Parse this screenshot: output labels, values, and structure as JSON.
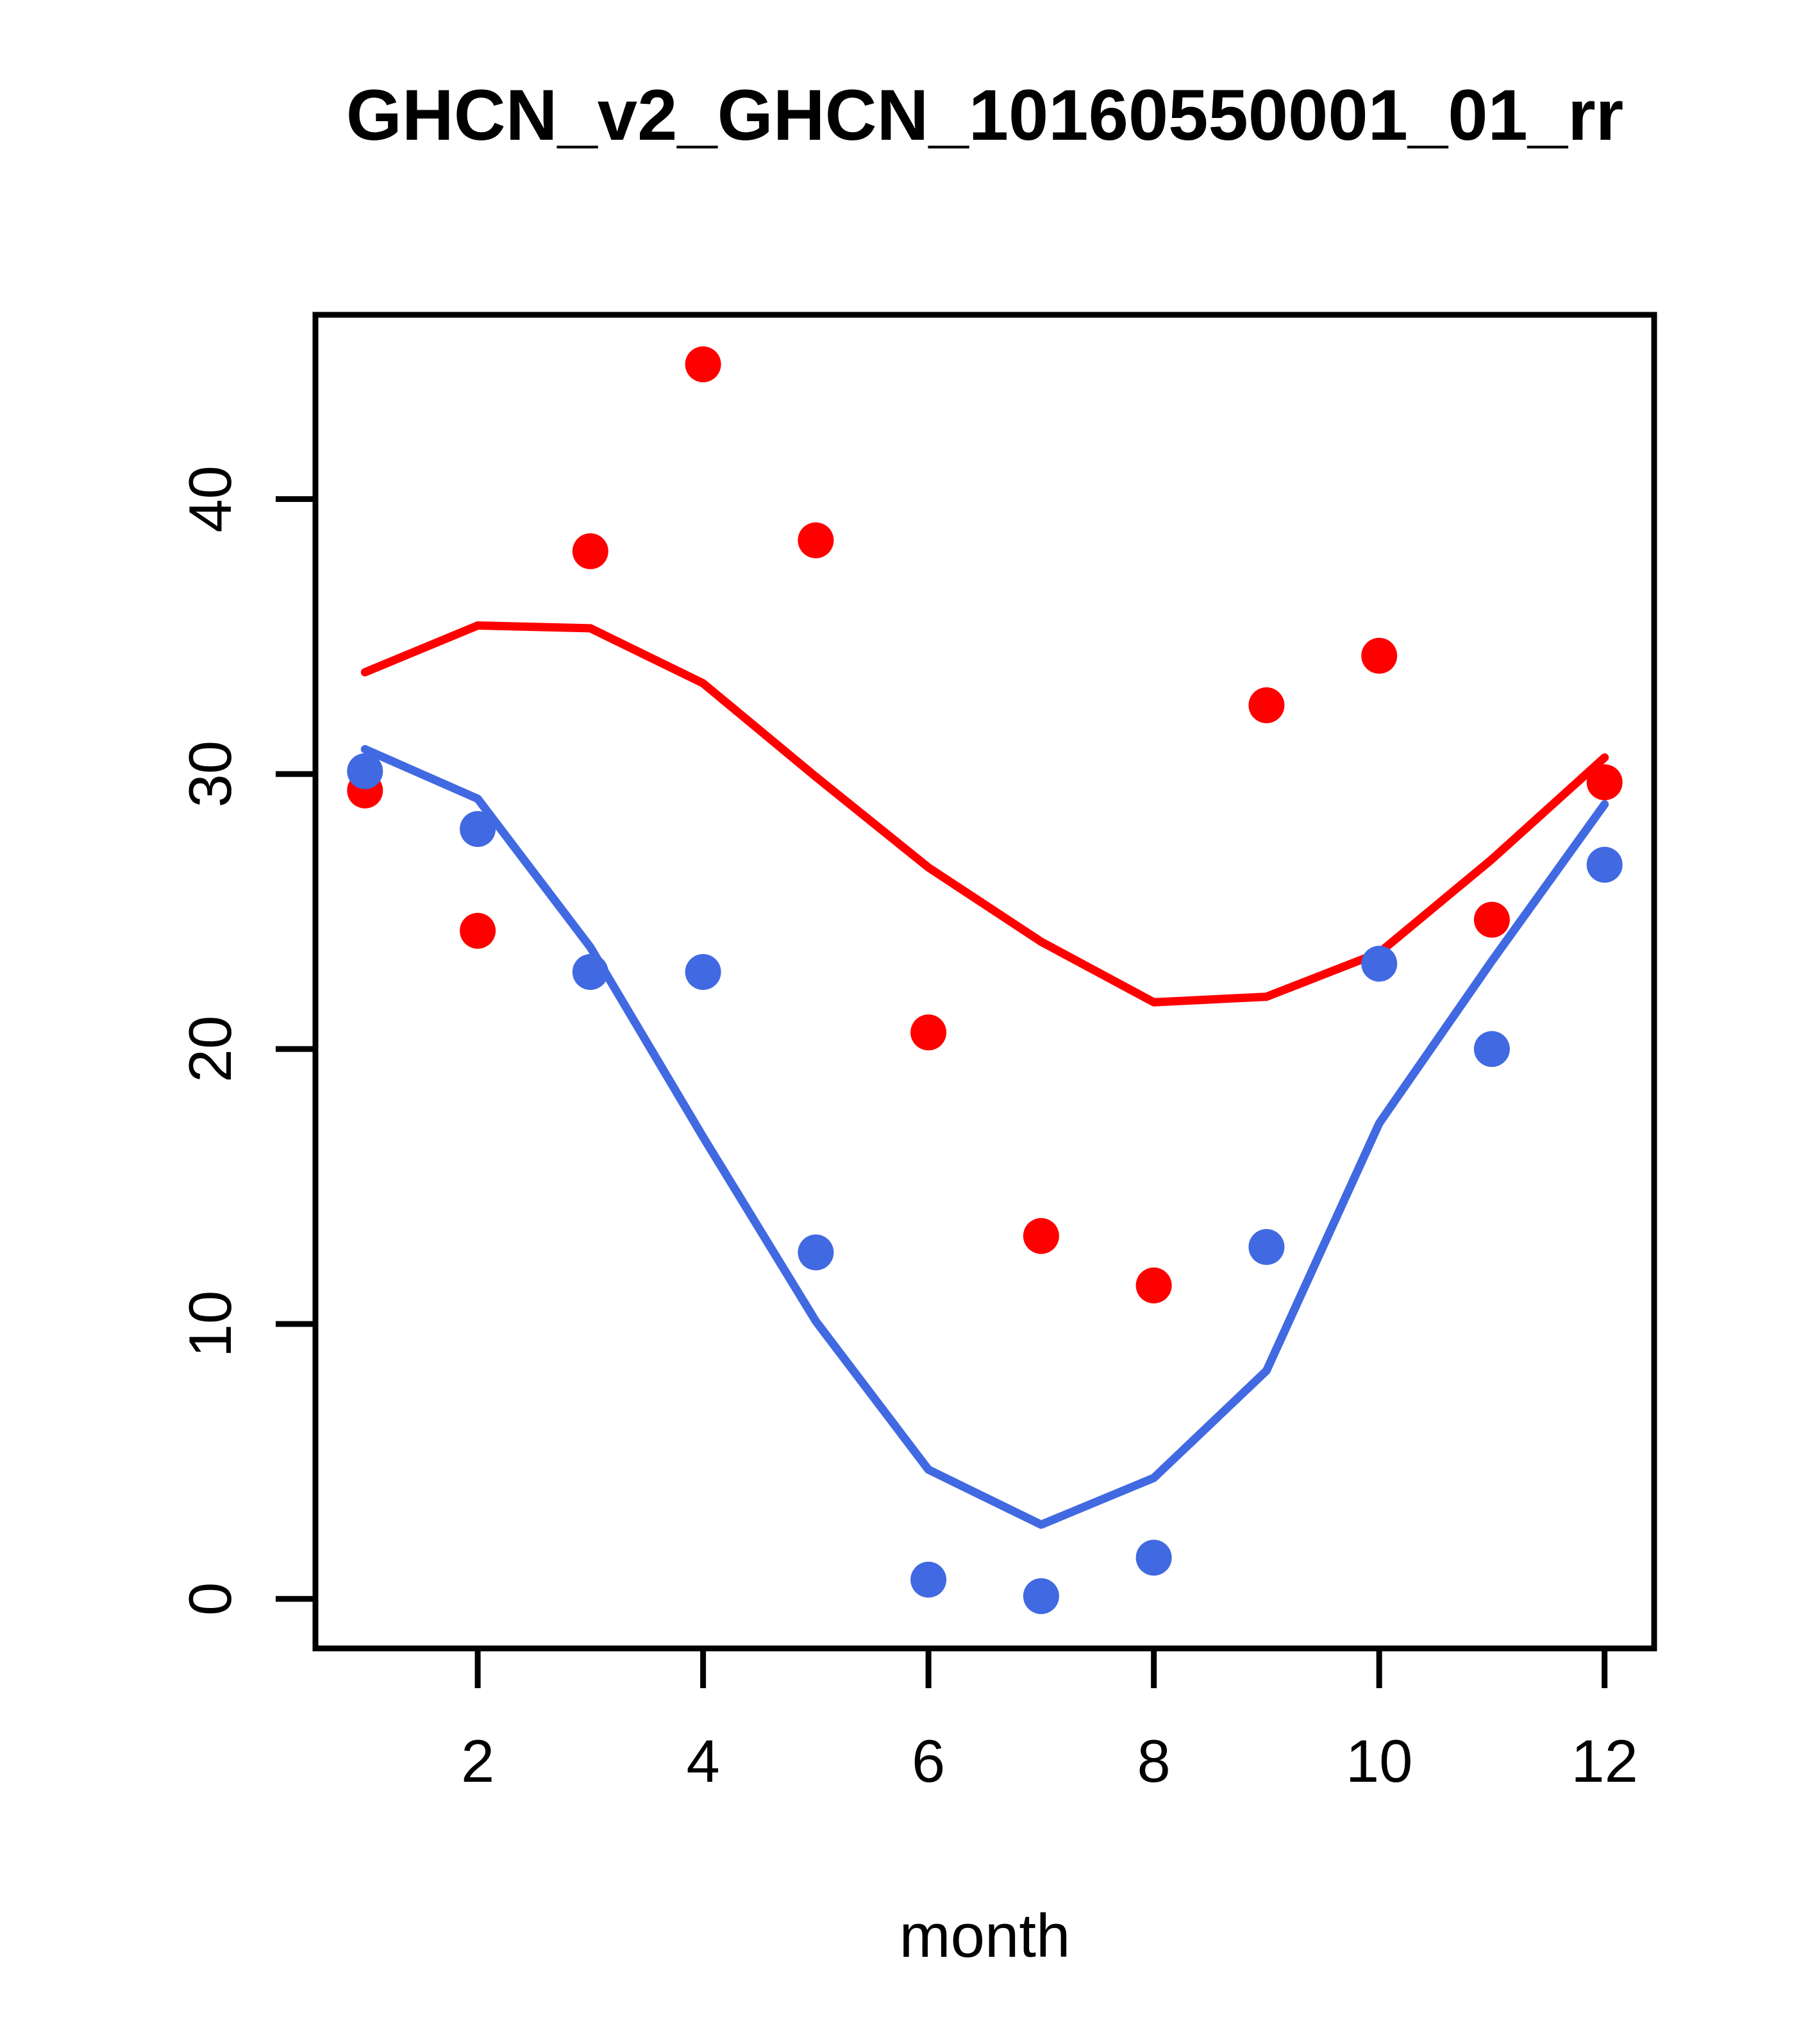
{
  "title": "GHCN_v2_GHCN_10160550001_01_rr",
  "chart_data": {
    "type": "scatter",
    "title": "GHCN_v2_GHCN_10160550001_01_rr",
    "xlabel": "month",
    "ylabel": "",
    "x": [
      1,
      2,
      3,
      4,
      5,
      6,
      7,
      8,
      9,
      10,
      11,
      12
    ],
    "xticks": [
      2,
      4,
      6,
      8,
      10,
      12
    ],
    "yticks": [
      0,
      10,
      20,
      30,
      40
    ],
    "xlim": [
      0.56,
      12.44
    ],
    "ylim": [
      -1.8,
      46.7
    ],
    "grid": false,
    "legend_position": "none",
    "colors": {
      "red": "#ff0000",
      "blue": "#4169e1",
      "axis": "#000000"
    },
    "series": [
      {
        "name": "red-points",
        "kind": "scatter",
        "color": "#ff0000",
        "values": [
          29.4,
          24.3,
          38.1,
          44.9,
          38.5,
          20.6,
          13.2,
          11.4,
          32.5,
          34.3,
          24.7,
          29.7
        ]
      },
      {
        "name": "blue-points",
        "kind": "scatter",
        "color": "#4169e1",
        "values": [
          30.1,
          28.0,
          22.8,
          22.8,
          12.6,
          0.7,
          0.1,
          1.5,
          12.8,
          23.1,
          20.0,
          26.7
        ]
      },
      {
        "name": "red-line",
        "kind": "line",
        "color": "#ff0000",
        "values": [
          33.7,
          35.4,
          35.3,
          33.3,
          29.9,
          26.6,
          23.9,
          21.7,
          21.9,
          23.5,
          26.9,
          30.6
        ]
      },
      {
        "name": "blue-line",
        "kind": "line",
        "color": "#4169e1",
        "values": [
          30.9,
          29.1,
          23.7,
          16.8,
          10.1,
          4.7,
          2.7,
          4.4,
          8.3,
          17.3,
          23.2,
          28.9
        ]
      }
    ]
  }
}
